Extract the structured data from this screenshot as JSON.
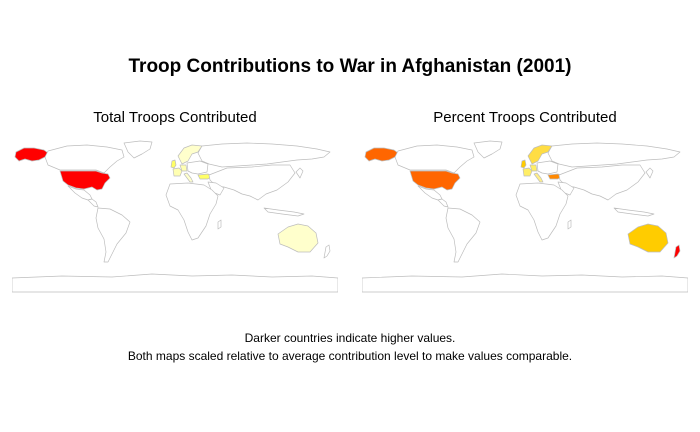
{
  "title": "Troop Contributions to War in Afghanistan (2001)",
  "panels": [
    {
      "id": "total",
      "title": "Total Troops Contributed",
      "regions": [
        {
          "region": "Alaska",
          "level": 1.0,
          "color": "#ff0000"
        },
        {
          "region": "United States",
          "level": 1.0,
          "color": "#ff0000"
        },
        {
          "region": "United Kingdom",
          "level": 0.35,
          "color": "#ffff66"
        },
        {
          "region": "Scandinavia",
          "level": 0.15,
          "color": "#ffffcc"
        },
        {
          "region": "France",
          "level": 0.2,
          "color": "#ffffb2"
        },
        {
          "region": "Germany",
          "level": 0.2,
          "color": "#ffffb2"
        },
        {
          "region": "Italy",
          "level": 0.15,
          "color": "#ffffcc"
        },
        {
          "region": "Turkey",
          "level": 0.35,
          "color": "#ffff66"
        },
        {
          "region": "Australia",
          "level": 0.15,
          "color": "#ffffcc"
        }
      ]
    },
    {
      "id": "percent",
      "title": "Percent Troops Contributed",
      "regions": [
        {
          "region": "Alaska",
          "level": 0.7,
          "color": "#ff6600"
        },
        {
          "region": "United States",
          "level": 0.7,
          "color": "#ff6600"
        },
        {
          "region": "United Kingdom",
          "level": 0.45,
          "color": "#ffcc00"
        },
        {
          "region": "Scandinavia",
          "level": 0.4,
          "color": "#ffdd44"
        },
        {
          "region": "France",
          "level": 0.35,
          "color": "#ffee66"
        },
        {
          "region": "Germany",
          "level": 0.35,
          "color": "#ffee66"
        },
        {
          "region": "Italy",
          "level": 0.3,
          "color": "#ffee88"
        },
        {
          "region": "Turkey",
          "level": 0.6,
          "color": "#ff8800"
        },
        {
          "region": "Australia",
          "level": 0.5,
          "color": "#ffcc00"
        },
        {
          "region": "New Zealand",
          "level": 1.0,
          "color": "#ff0000"
        }
      ]
    }
  ],
  "captions": [
    "Darker countries indicate higher values.",
    "Both maps scaled relative to average contribution level to make values comparable."
  ],
  "colors": {
    "outline": "#bdbdbd",
    "land": "#ffffff"
  }
}
